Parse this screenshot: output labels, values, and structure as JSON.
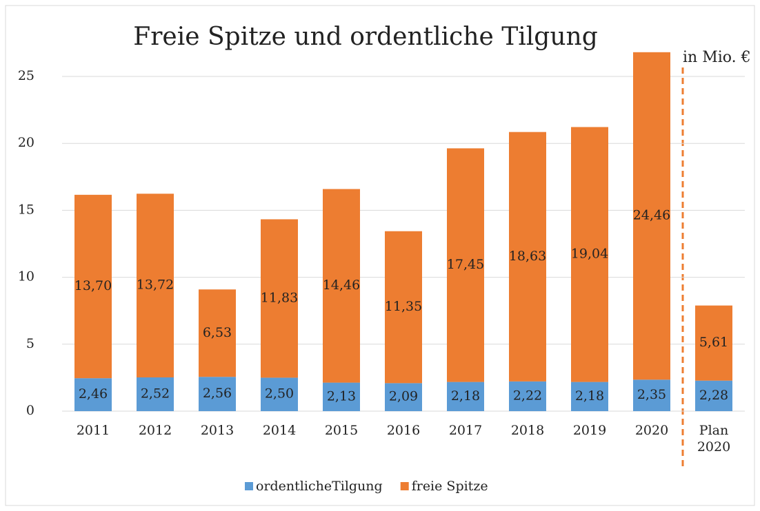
{
  "chart_data": {
    "type": "stacked_bar",
    "title": "Freie Spitze und ordentliche Tilgung",
    "annotation": "in Mio. €",
    "categories": [
      "2011",
      "2012",
      "2013",
      "2014",
      "2015",
      "2016",
      "2017",
      "2018",
      "2019",
      "2020",
      "Plan 2020"
    ],
    "series": [
      {
        "name": "ordentlicheTilgung",
        "color": "#5b9bd5",
        "values": [
          2.46,
          2.52,
          2.56,
          2.5,
          2.13,
          2.09,
          2.18,
          2.22,
          2.18,
          2.35,
          2.28
        ],
        "value_labels": [
          "2,46",
          "2,52",
          "2,56",
          "2,50",
          "2,13",
          "2,09",
          "2,18",
          "2,22",
          "2,18",
          "2,35",
          "2,28"
        ]
      },
      {
        "name": "freie Spitze",
        "color": "#ed7d31",
        "values": [
          13.7,
          13.72,
          6.53,
          11.83,
          14.46,
          11.35,
          17.45,
          18.63,
          19.04,
          24.46,
          5.61
        ],
        "value_labels": [
          "13,70",
          "13,72",
          "6,53",
          "11,83",
          "14,46",
          "11,35",
          "17,45",
          "18,63",
          "19,04",
          "24,46",
          "5,61"
        ]
      }
    ],
    "ylim": [
      0,
      25
    ],
    "yticks": [
      0,
      5,
      10,
      15,
      20,
      25
    ],
    "grid": true,
    "legend": "bottom"
  }
}
